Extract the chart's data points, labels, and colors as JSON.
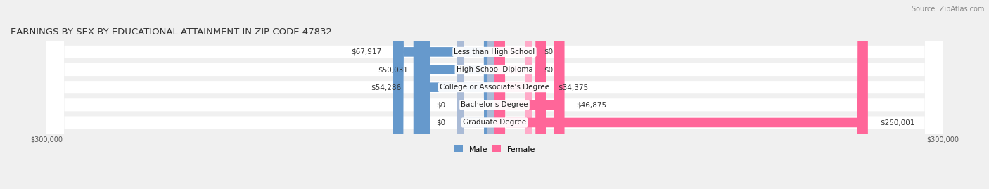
{
  "title": "EARNINGS BY SEX BY EDUCATIONAL ATTAINMENT IN ZIP CODE 47832",
  "source": "Source: ZipAtlas.com",
  "categories": [
    "Less than High School",
    "High School Diploma",
    "College or Associate's Degree",
    "Bachelor's Degree",
    "Graduate Degree"
  ],
  "male_values": [
    67917,
    50031,
    54286,
    0,
    0
  ],
  "female_values": [
    0,
    0,
    34375,
    46875,
    250001
  ],
  "male_color": "#6699CC",
  "female_color": "#FF6699",
  "male_light_color": "#AABBD6",
  "female_light_color": "#FFAAC8",
  "axis_max": 300000,
  "stub_size": 25000,
  "background_color": "#f0f0f0",
  "row_color": "#ffffff",
  "title_fontsize": 9.5,
  "source_fontsize": 7,
  "label_fontsize": 7.5,
  "value_fontsize": 7.5,
  "tick_fontsize": 7,
  "legend_fontsize": 8
}
